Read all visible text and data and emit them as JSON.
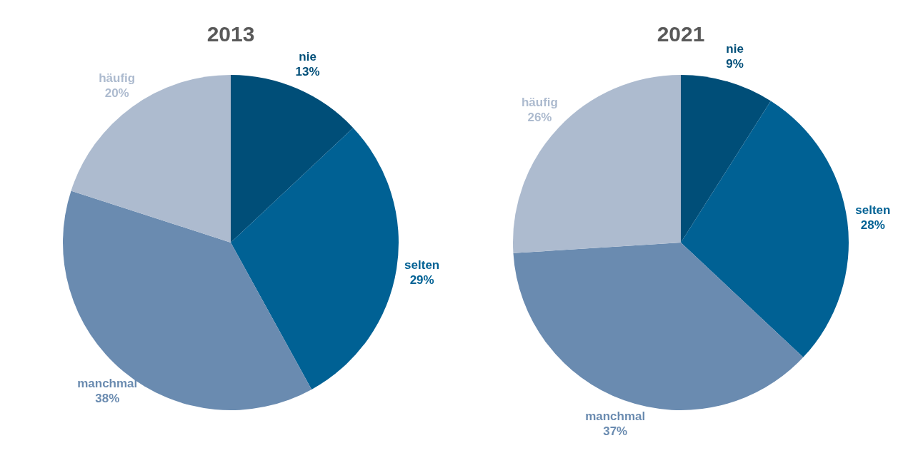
{
  "chart_data": [
    {
      "type": "pie",
      "title": "2013",
      "categories": [
        "nie",
        "selten",
        "manchmal",
        "häufig"
      ],
      "values": [
        13,
        29,
        38,
        20
      ],
      "colors": [
        "#004e78",
        "#006194",
        "#6a8bb0",
        "#adbbcf"
      ],
      "value_labels": [
        "13%",
        "29%",
        "38%",
        "20%"
      ]
    },
    {
      "type": "pie",
      "title": "2021",
      "categories": [
        "nie",
        "selten",
        "manchmal",
        "häufig"
      ],
      "values": [
        9,
        28,
        37,
        26
      ],
      "colors": [
        "#004e78",
        "#006194",
        "#6a8bb0",
        "#adbbcf"
      ],
      "value_labels": [
        "9%",
        "28%",
        "37%",
        "26%"
      ]
    }
  ]
}
